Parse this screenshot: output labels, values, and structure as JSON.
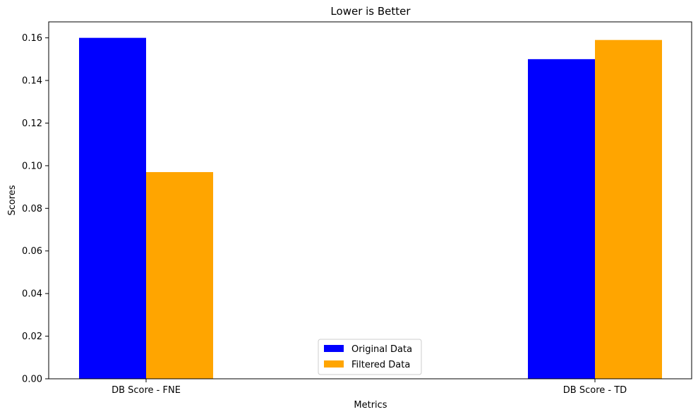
{
  "chart_data": {
    "type": "bar",
    "title": "Lower is Better",
    "xlabel": "Metrics",
    "ylabel": "Scores",
    "categories": [
      "DB Score - FNE",
      "DB Score - TD"
    ],
    "series": [
      {
        "name": "Original Data",
        "color": "#0000ff",
        "values": [
          0.16,
          0.15
        ]
      },
      {
        "name": "Filtered Data",
        "color": "#ffa500",
        "values": [
          0.097,
          0.159
        ]
      }
    ],
    "ylim": [
      0,
      0.1675
    ],
    "yticks": [
      0.0,
      0.02,
      0.04,
      0.06,
      0.08,
      0.1,
      0.12,
      0.14,
      0.16
    ],
    "ytick_labels": [
      "0.00",
      "0.02",
      "0.04",
      "0.06",
      "0.08",
      "0.10",
      "0.12",
      "0.14",
      "0.16"
    ],
    "grid": false,
    "legend_position": "bottom-center"
  }
}
